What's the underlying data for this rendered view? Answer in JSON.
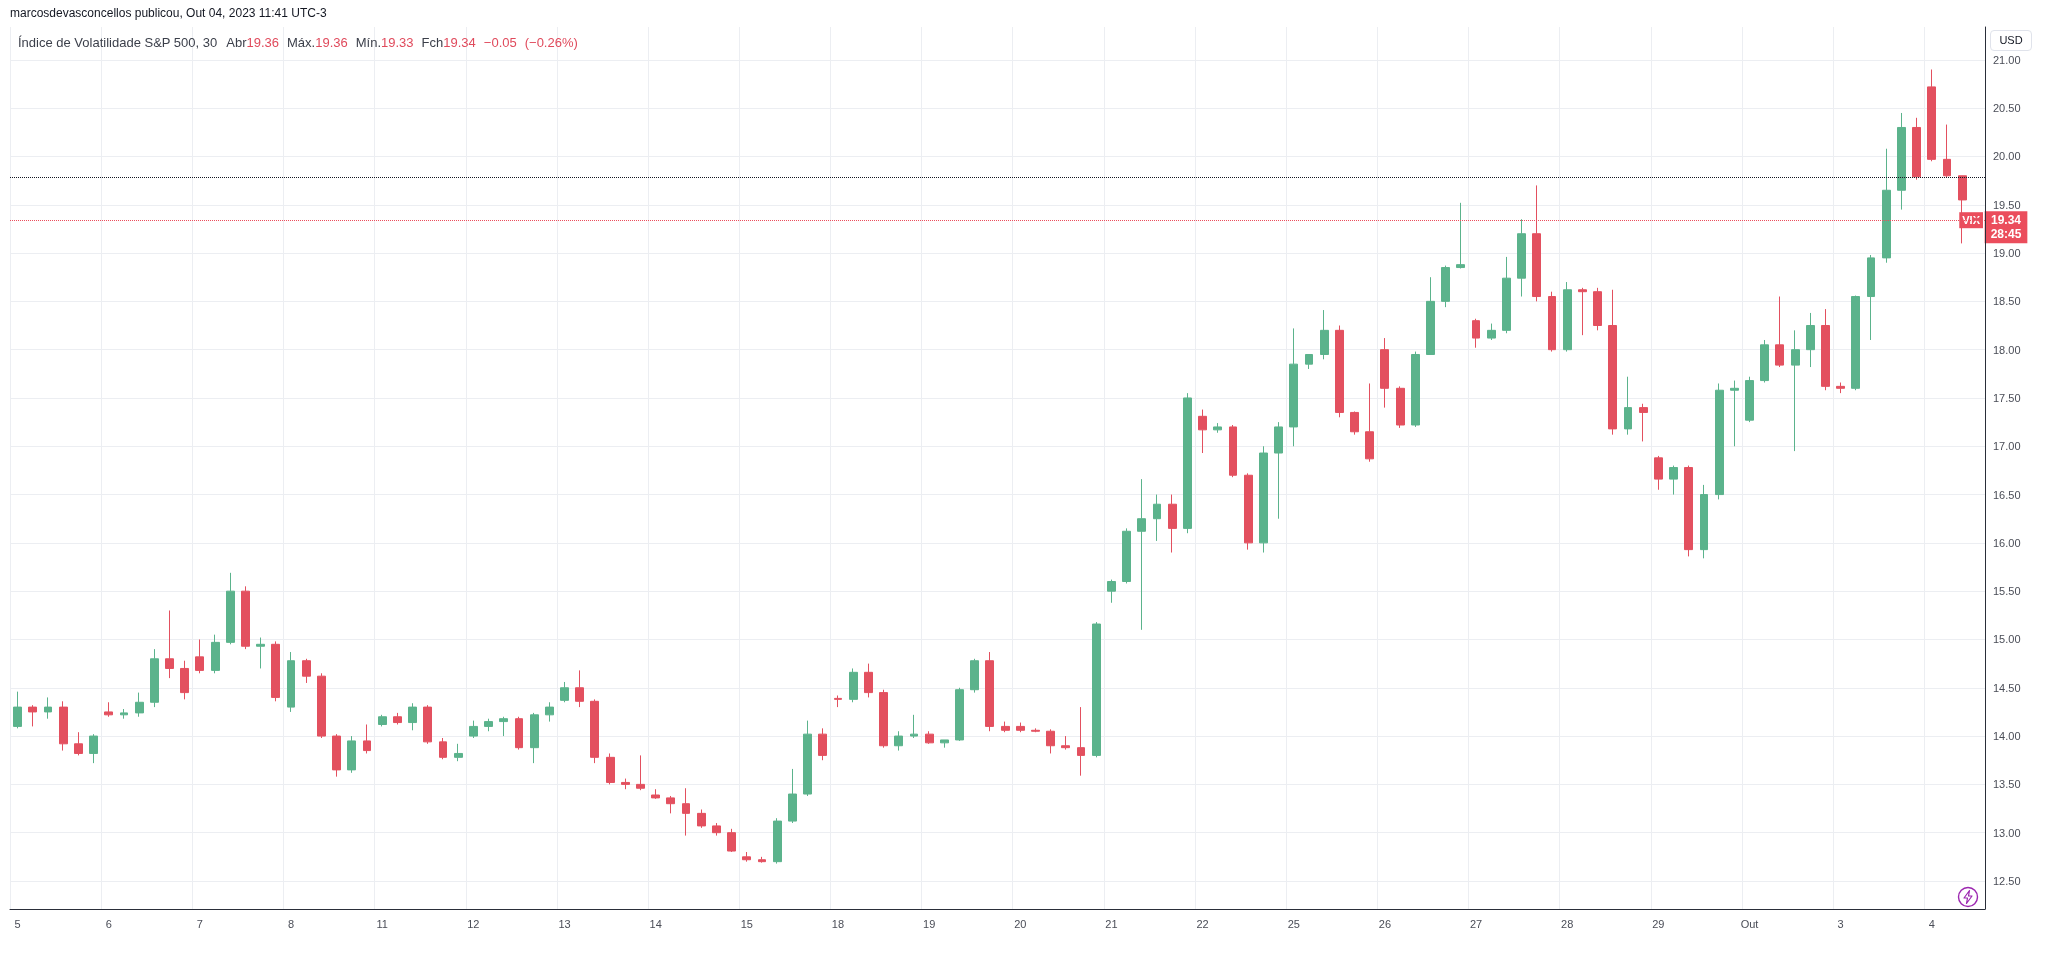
{
  "chart_data": {
    "type": "candlestick",
    "title": "Índice de Volatilidade S&P 500, 30",
    "ylabel": "USD",
    "annotations": [
      "marcosdevasconcellos publicou, Out 04, 2023 11:41 UTC-3",
      "Abr19.36 Máx.19.36 Mín.19.33 Fch19.34 −0.05 (−0.26%)",
      "19.34\n28:45"
    ],
    "categories": [
      "5",
      null,
      null,
      null,
      null,
      null,
      "6",
      null,
      null,
      null,
      null,
      null,
      "7",
      null,
      null,
      null,
      null,
      null,
      "8",
      null,
      null,
      null,
      null,
      null,
      "11",
      null,
      null,
      null,
      null,
      null,
      "12",
      null,
      null,
      null,
      null,
      null,
      "13",
      null,
      null,
      null,
      null,
      null,
      "14",
      null,
      null,
      null,
      null,
      null,
      "15",
      null,
      null,
      null,
      null,
      null,
      "18",
      null,
      null,
      null,
      null,
      null,
      "19",
      null,
      null,
      null,
      null,
      null,
      "20",
      null,
      null,
      null,
      null,
      null,
      "21",
      null,
      null,
      null,
      null,
      null,
      "22",
      null,
      null,
      null,
      null,
      null,
      "25",
      null,
      null,
      null,
      null,
      null,
      "26",
      null,
      null,
      null,
      null,
      null,
      "27",
      null,
      null,
      null,
      null,
      null,
      "28",
      null,
      null,
      null,
      null,
      null,
      "29",
      null,
      null,
      null,
      null,
      null,
      "Out",
      null,
      null,
      null,
      null,
      null,
      "3",
      null,
      null,
      null,
      null,
      null,
      "4",
      null,
      null,
      null
    ],
    "ohlc": [
      [
        14.1,
        14.46,
        14.08,
        14.3
      ],
      [
        14.3,
        14.32,
        14.1,
        14.25
      ],
      [
        14.25,
        14.4,
        14.18,
        14.3
      ],
      [
        14.3,
        14.36,
        13.85,
        13.92
      ],
      [
        13.92,
        14.04,
        13.8,
        13.82
      ],
      [
        13.82,
        14.02,
        13.72,
        14.0
      ],
      [
        14.25,
        14.35,
        14.2,
        14.22
      ],
      [
        14.22,
        14.28,
        14.18,
        14.24
      ],
      [
        14.24,
        14.45,
        14.2,
        14.35
      ],
      [
        14.35,
        14.9,
        14.3,
        14.8
      ],
      [
        14.8,
        15.3,
        14.6,
        14.7
      ],
      [
        14.7,
        14.78,
        14.38,
        14.45
      ],
      [
        14.82,
        15.0,
        14.65,
        14.68
      ],
      [
        14.68,
        15.05,
        14.65,
        14.97
      ],
      [
        14.97,
        15.69,
        14.95,
        15.5
      ],
      [
        15.5,
        15.55,
        14.9,
        14.93
      ],
      [
        14.93,
        15.02,
        14.7,
        14.95
      ],
      [
        14.95,
        14.98,
        14.36,
        14.4
      ],
      [
        14.3,
        14.87,
        14.25,
        14.78
      ],
      [
        14.78,
        14.8,
        14.55,
        14.62
      ],
      [
        14.62,
        14.65,
        13.98,
        14.0
      ],
      [
        14.0,
        14.02,
        13.58,
        13.65
      ],
      [
        13.65,
        14.0,
        13.62,
        13.95
      ],
      [
        13.95,
        14.12,
        13.82,
        13.85
      ],
      [
        14.12,
        14.22,
        14.1,
        14.2
      ],
      [
        14.2,
        14.24,
        14.12,
        14.14
      ],
      [
        14.14,
        14.34,
        14.06,
        14.3
      ],
      [
        14.3,
        14.32,
        13.92,
        13.94
      ],
      [
        13.94,
        13.98,
        13.76,
        13.78
      ],
      [
        13.78,
        13.92,
        13.74,
        13.82
      ],
      [
        14.0,
        14.16,
        13.98,
        14.1
      ],
      [
        14.1,
        14.18,
        14.05,
        14.15
      ],
      [
        14.15,
        14.2,
        14.0,
        14.18
      ],
      [
        14.18,
        14.2,
        13.86,
        13.88
      ],
      [
        13.88,
        14.24,
        13.72,
        14.22
      ],
      [
        14.22,
        14.35,
        14.15,
        14.3
      ],
      [
        14.37,
        14.56,
        14.35,
        14.5
      ],
      [
        14.5,
        14.68,
        14.3,
        14.36
      ],
      [
        14.36,
        14.38,
        13.72,
        13.78
      ],
      [
        13.78,
        13.82,
        13.5,
        13.52
      ],
      [
        13.52,
        13.56,
        13.45,
        13.5
      ],
      [
        13.5,
        13.8,
        13.44,
        13.46
      ],
      [
        13.39,
        13.45,
        13.35,
        13.36
      ],
      [
        13.36,
        13.38,
        13.2,
        13.3
      ],
      [
        13.3,
        13.46,
        12.97,
        13.2
      ],
      [
        13.2,
        13.24,
        13.05,
        13.07
      ],
      [
        13.07,
        13.1,
        12.97,
        13.0
      ],
      [
        13.0,
        13.04,
        12.8,
        12.81
      ],
      [
        12.75,
        12.8,
        12.7,
        12.72
      ],
      [
        12.72,
        12.75,
        12.69,
        12.7
      ],
      [
        12.7,
        13.15,
        12.68,
        13.12
      ],
      [
        13.12,
        13.66,
        13.1,
        13.4
      ],
      [
        13.4,
        14.16,
        13.38,
        14.02
      ],
      [
        14.02,
        14.08,
        13.75,
        13.8
      ],
      [
        14.39,
        14.42,
        14.3,
        14.38
      ],
      [
        14.38,
        14.7,
        14.35,
        14.66
      ],
      [
        14.66,
        14.75,
        14.4,
        14.45
      ],
      [
        14.45,
        14.48,
        13.88,
        13.9
      ],
      [
        13.9,
        14.05,
        13.85,
        14.0
      ],
      [
        14.0,
        14.22,
        13.98,
        14.02
      ],
      [
        14.02,
        14.05,
        13.92,
        13.93
      ],
      [
        13.93,
        13.96,
        13.88,
        13.96
      ],
      [
        13.96,
        14.5,
        13.95,
        14.48
      ],
      [
        14.48,
        14.8,
        14.45,
        14.78
      ],
      [
        14.78,
        14.87,
        14.05,
        14.1
      ],
      [
        14.1,
        14.15,
        14.04,
        14.06
      ],
      [
        14.1,
        14.14,
        14.04,
        14.06
      ],
      [
        14.06,
        14.08,
        14.04,
        14.05
      ],
      [
        14.05,
        14.07,
        13.82,
        13.9
      ],
      [
        13.9,
        14.0,
        13.86,
        13.88
      ],
      [
        13.88,
        14.3,
        13.59,
        13.8
      ],
      [
        13.8,
        15.18,
        13.78,
        15.16
      ],
      [
        15.5,
        15.62,
        15.38,
        15.6
      ],
      [
        15.6,
        16.15,
        15.58,
        16.12
      ],
      [
        16.12,
        16.66,
        15.1,
        16.25
      ],
      [
        16.25,
        16.5,
        16.02,
        16.4
      ],
      [
        16.4,
        16.5,
        15.9,
        16.15
      ],
      [
        16.15,
        17.55,
        16.1,
        17.5
      ],
      [
        17.31,
        17.38,
        16.93,
        17.17
      ],
      [
        17.17,
        17.24,
        17.14,
        17.2
      ],
      [
        17.2,
        17.22,
        16.68,
        16.7
      ],
      [
        16.7,
        16.72,
        15.93,
        16.0
      ],
      [
        16.0,
        17.0,
        15.9,
        16.93
      ],
      [
        16.93,
        17.25,
        16.25,
        17.2
      ],
      [
        17.2,
        18.22,
        17.0,
        17.85
      ],
      [
        17.85,
        17.95,
        17.8,
        17.95
      ],
      [
        17.95,
        18.41,
        17.9,
        18.2
      ],
      [
        18.2,
        18.25,
        17.3,
        17.35
      ],
      [
        17.35,
        17.36,
        17.12,
        17.15
      ],
      [
        17.15,
        17.65,
        16.84,
        16.87
      ],
      [
        18.0,
        18.12,
        17.4,
        17.6
      ],
      [
        17.6,
        17.62,
        17.19,
        17.22
      ],
      [
        17.22,
        17.98,
        17.2,
        17.95
      ],
      [
        17.95,
        18.75,
        17.95,
        18.5
      ],
      [
        18.5,
        18.87,
        18.44,
        18.85
      ],
      [
        18.85,
        19.52,
        18.84,
        18.88
      ],
      [
        18.3,
        18.32,
        18.02,
        18.12
      ],
      [
        18.12,
        18.27,
        18.1,
        18.2
      ],
      [
        18.2,
        18.96,
        18.17,
        18.74
      ],
      [
        18.74,
        19.35,
        18.55,
        19.2
      ],
      [
        19.2,
        19.7,
        18.5,
        18.55
      ],
      [
        18.55,
        18.6,
        17.98,
        18.0
      ],
      [
        18.0,
        18.7,
        17.98,
        18.62
      ],
      [
        18.62,
        18.64,
        18.15,
        18.6
      ],
      [
        18.6,
        18.64,
        18.2,
        18.25
      ],
      [
        18.25,
        18.62,
        17.12,
        17.18
      ],
      [
        17.18,
        17.72,
        17.12,
        17.4
      ],
      [
        17.4,
        17.44,
        17.05,
        17.35
      ],
      [
        16.88,
        16.9,
        16.55,
        16.66
      ],
      [
        16.66,
        16.8,
        16.5,
        16.78
      ],
      [
        16.78,
        16.8,
        15.86,
        15.93
      ],
      [
        15.93,
        16.6,
        15.84,
        16.5
      ],
      [
        16.5,
        17.65,
        16.45,
        17.58
      ],
      [
        17.58,
        17.68,
        17.0,
        17.6
      ],
      [
        17.27,
        17.72,
        17.25,
        17.68
      ],
      [
        17.68,
        18.1,
        17.66,
        18.05
      ],
      [
        18.05,
        18.55,
        17.82,
        17.84
      ],
      [
        17.84,
        18.2,
        16.95,
        18.0
      ],
      [
        18.0,
        18.38,
        17.82,
        18.25
      ],
      [
        18.25,
        18.42,
        17.58,
        17.62
      ],
      [
        17.62,
        17.66,
        17.55,
        17.6
      ],
      [
        17.6,
        18.56,
        17.58,
        18.55
      ],
      [
        18.55,
        18.98,
        18.1,
        18.95
      ],
      [
        18.95,
        20.08,
        18.9,
        19.65
      ],
      [
        19.65,
        20.45,
        19.45,
        20.3
      ],
      [
        20.3,
        20.4,
        19.76,
        19.79
      ],
      [
        20.72,
        20.9,
        19.95,
        19.97
      ],
      [
        19.97,
        20.33,
        19.78,
        19.8
      ],
      [
        19.8,
        19.8,
        19.1,
        19.55
      ],
      [
        19.36,
        19.36,
        19.33,
        19.34
      ]
    ],
    "colors": [
      "#5bb38c",
      "#e3505f",
      "#5bb38c",
      "#e3505f",
      "#e3505f",
      "#5bb38c",
      "#e3505f",
      "#5bb38c",
      "#5bb38c",
      "#5bb38c",
      "#e3505f",
      "#e3505f",
      "#e3505f",
      "#5bb38c",
      "#5bb38c",
      "#e3505f",
      "#5bb38c",
      "#e3505f",
      "#5bb38c",
      "#e3505f",
      "#e3505f",
      "#e3505f",
      "#5bb38c",
      "#e3505f",
      "#5bb38c",
      "#e3505f",
      "#5bb38c",
      "#e3505f",
      "#e3505f",
      "#5bb38c",
      "#5bb38c",
      "#5bb38c",
      "#5bb38c",
      "#e3505f",
      "#5bb38c",
      "#5bb38c",
      "#5bb38c",
      "#e3505f",
      "#e3505f",
      "#e3505f",
      "#e3505f",
      "#e3505f",
      "#e3505f",
      "#e3505f",
      "#e3505f",
      "#e3505f",
      "#e3505f",
      "#e3505f",
      "#e3505f",
      "#e3505f",
      "#5bb38c",
      "#5bb38c",
      "#5bb38c",
      "#e3505f",
      "#e3505f",
      "#5bb38c",
      "#e3505f",
      "#e3505f",
      "#5bb38c",
      "#5bb38c",
      "#e3505f",
      "#5bb38c",
      "#5bb38c",
      "#5bb38c",
      "#e3505f",
      "#e3505f",
      "#e3505f",
      "#e3505f",
      "#e3505f",
      "#e3505f",
      "#e3505f",
      "#5bb38c",
      "#5bb38c",
      "#5bb38c",
      "#5bb38c",
      "#5bb38c",
      "#e3505f",
      "#5bb38c",
      "#e3505f",
      "#5bb38c",
      "#e3505f",
      "#e3505f",
      "#5bb38c",
      "#5bb38c",
      "#5bb38c",
      "#5bb38c",
      "#5bb38c",
      "#e3505f",
      "#e3505f",
      "#e3505f",
      "#e3505f",
      "#e3505f",
      "#5bb38c",
      "#5bb38c",
      "#5bb38c",
      "#5bb38c",
      "#e3505f",
      "#5bb38c",
      "#5bb38c",
      "#5bb38c",
      "#e3505f",
      "#e3505f",
      "#5bb38c",
      "#e3505f",
      "#e3505f",
      "#e3505f",
      "#5bb38c",
      "#e3505f",
      "#e3505f",
      "#5bb38c",
      "#e3505f",
      "#5bb38c",
      "#5bb38c",
      "#5bb38c",
      "#5bb38c",
      "#5bb38c",
      "#e3505f",
      "#5bb38c",
      "#5bb38c",
      "#e3505f",
      "#e3505f",
      "#5bb38c",
      "#5bb38c",
      "#5bb38c",
      "#5bb38c",
      "#e3505f",
      "#e3505f",
      "#e3505f",
      "#e3505f",
      "#e3505f"
    ],
    "ylim": [
      12.21,
      21.34
    ],
    "yticks": [
      {
        "value": 12.5,
        "label": "12.50"
      },
      {
        "value": 13,
        "label": "13.00"
      },
      {
        "value": 13.5,
        "label": "13.50"
      },
      {
        "value": 14,
        "label": "14.00"
      },
      {
        "value": 14.5,
        "label": "14.50"
      },
      {
        "value": 15,
        "label": "15.00"
      },
      {
        "value": 15.5,
        "label": "15.50"
      },
      {
        "value": 16,
        "label": "16.00"
      },
      {
        "value": 16.5,
        "label": "16.50"
      },
      {
        "value": 17,
        "label": "17.00"
      },
      {
        "value": 17.5,
        "label": "17.50"
      },
      {
        "value": 18,
        "label": "18.00"
      },
      {
        "value": 18.5,
        "label": "18.50"
      },
      {
        "value": 19,
        "label": "19.00"
      },
      {
        "value": 19.5,
        "label": "19.50"
      },
      {
        "value": 20,
        "label": "20.00"
      },
      {
        "value": 20.5,
        "label": "20.50"
      },
      {
        "value": 21,
        "label": "21.00"
      }
    ],
    "grid": true,
    "ref_lines": [
      {
        "axis": "y",
        "value": 19.78,
        "color": "#131722",
        "line_style": "dotted"
      },
      {
        "axis": "y",
        "value": 19.34,
        "label": "VIX",
        "color": "#eb4d5c",
        "line_style": "dotted"
      }
    ]
  }
}
